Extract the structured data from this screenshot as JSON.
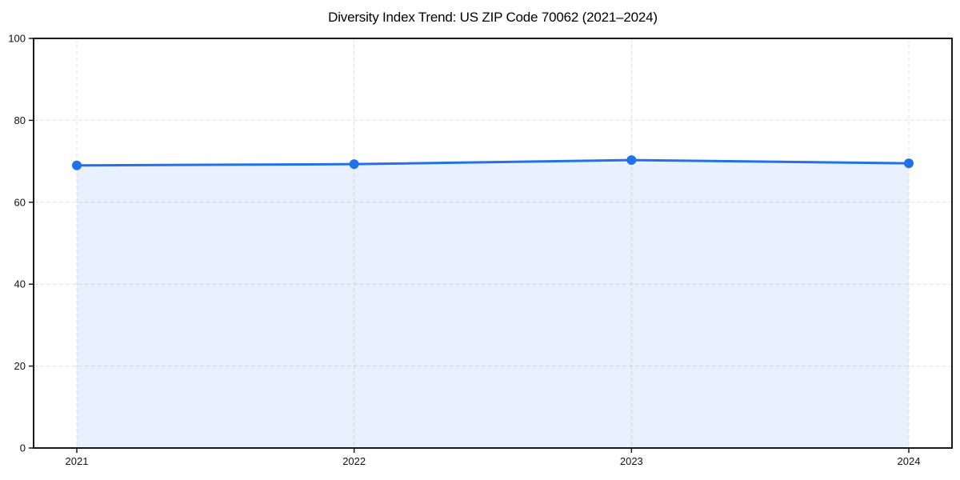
{
  "chart_data": {
    "type": "area",
    "title": "Diversity Index Trend: US ZIP Code 70062 (2021–2024)",
    "x": [
      "2021",
      "2022",
      "2023",
      "2024"
    ],
    "series": [
      {
        "name": "Diversity Index",
        "values": [
          69.0,
          69.3,
          70.3,
          69.5
        ]
      }
    ],
    "xlabel": "",
    "ylabel": "",
    "ylim": [
      0,
      100
    ],
    "yticks": [
      0,
      20,
      40,
      60,
      80,
      100
    ],
    "grid": "dashed-both-axes",
    "legend_position": "none",
    "colors": {
      "line": "#2172e8",
      "marker": "#2172e8",
      "fill": "rgba(33,114,232,0.10)",
      "grid": "#e0e0e0",
      "spine": "#1a1a1a",
      "tick_label": "#111111",
      "title": "#000000"
    }
  }
}
